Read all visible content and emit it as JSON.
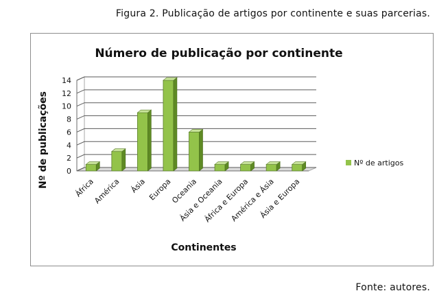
{
  "figure": {
    "caption": "Figura 2. Publicação de artigos por continente e suas parcerias.",
    "source": "Fonte: autores."
  },
  "chart_data": {
    "type": "bar",
    "title": "Número de publicação por continente",
    "xlabel": "Continentes",
    "ylabel": "Nº de publicações",
    "categories": [
      "África",
      "América",
      "Ásia",
      "Europa",
      "Oceania",
      "Ásia e Oceania",
      "África e Europa",
      "América e Ásia",
      "Ásia e Europa"
    ],
    "series": [
      {
        "name": "Nº de artigos",
        "values": [
          1,
          3,
          9,
          14,
          6,
          1,
          1,
          1,
          1
        ]
      }
    ],
    "ylim": [
      0,
      14
    ],
    "yticks": [
      "0",
      "2",
      "4",
      "6",
      "8",
      "10",
      "12",
      "14"
    ],
    "grid": true,
    "legend_position": "right",
    "colors": {
      "bar_front": "#93c34a",
      "bar_side": "#5e8a24",
      "bar_top": "#c8e39a",
      "grid": "#5a5a5a"
    }
  }
}
